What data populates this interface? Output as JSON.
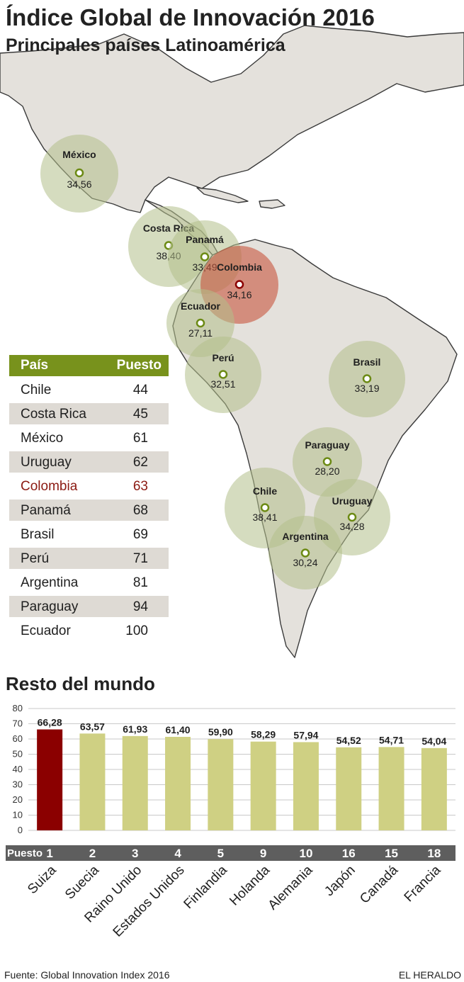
{
  "header": {
    "title": "Índice Global de Innovación 2016",
    "subtitle": "Principales países Latinoamérica"
  },
  "colors": {
    "highlight": "#8b0000",
    "bar": "#cfd083",
    "circle": "#b3c08a",
    "table_header": "#78921c"
  },
  "map": {
    "countries": [
      {
        "name": "México",
        "value": "34,56",
        "highlight": false
      },
      {
        "name": "Costa Rica",
        "value": "38,40",
        "highlight": false
      },
      {
        "name": "Panamá",
        "value": "33,49",
        "highlight": false
      },
      {
        "name": "Colombia",
        "value": "34,16",
        "highlight": true
      },
      {
        "name": "Ecuador",
        "value": "27,11",
        "highlight": false
      },
      {
        "name": "Perú",
        "value": "32,51",
        "highlight": false
      },
      {
        "name": "Brasil",
        "value": "33,19",
        "highlight": false
      },
      {
        "name": "Paraguay",
        "value": "28,20",
        "highlight": false
      },
      {
        "name": "Chile",
        "value": "38,41",
        "highlight": false
      },
      {
        "name": "Uruguay",
        "value": "34,28",
        "highlight": false
      },
      {
        "name": "Argentina",
        "value": "30,24",
        "highlight": false
      }
    ]
  },
  "ranking": {
    "col_country": "País",
    "col_rank": "Puesto",
    "rows": [
      {
        "country": "Chile",
        "rank": "44"
      },
      {
        "country": "Costa Rica",
        "rank": "45"
      },
      {
        "country": "México",
        "rank": "61"
      },
      {
        "country": "Uruguay",
        "rank": "62"
      },
      {
        "country": "Colombia",
        "rank": "63"
      },
      {
        "country": "Panamá",
        "rank": "68"
      },
      {
        "country": "Brasil",
        "rank": "69"
      },
      {
        "country": "Perú",
        "rank": "71"
      },
      {
        "country": "Argentina",
        "rank": "81"
      },
      {
        "country": "Paraguay",
        "rank": "94"
      },
      {
        "country": "Ecuador",
        "rank": "100"
      }
    ]
  },
  "world": {
    "title": "Resto del mundo"
  },
  "chart_data": {
    "type": "bar",
    "title": "Resto del mundo",
    "categories": [
      "Suiza",
      "Suecia",
      "Raino Unido",
      "Estados Unidos",
      "Finlandia",
      "Holanda",
      "Alemania",
      "Japón",
      "Canadá",
      "Francia"
    ],
    "values": [
      66.28,
      63.57,
      61.93,
      61.4,
      59.9,
      58.29,
      57.94,
      54.52,
      54.71,
      54.04
    ],
    "value_labels": [
      "66,28",
      "63,57",
      "61,93",
      "61,40",
      "59,90",
      "58,29",
      "57,94",
      "54,52",
      "54,71",
      "54,04"
    ],
    "rank_label": "Puesto",
    "ranks": [
      "1",
      "2",
      "3",
      "4",
      "5",
      "9",
      "10",
      "16",
      "15",
      "18"
    ],
    "ylim": [
      0,
      80
    ],
    "yticks": [
      "0",
      "10",
      "20",
      "30",
      "40",
      "50",
      "60",
      "70",
      "80"
    ],
    "grid": true,
    "highlight_index": 0
  },
  "footer": {
    "source": "Fuente: Global Innovation Index 2016",
    "brand": "EL HERALDO"
  }
}
